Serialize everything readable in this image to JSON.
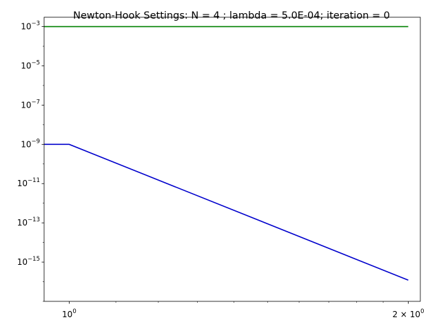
{
  "chart_data": {
    "type": "line",
    "title": "Newton-Hook Settings: N = 4 ; lambda = 5.0E-04; iteration = 0",
    "xlabel": "",
    "ylabel": "",
    "xscale": "log",
    "yscale": "log",
    "xlim": [
      0.95,
      2.05
    ],
    "ylim": [
      1e-17,
      0.003
    ],
    "grid": false,
    "legend": "none",
    "x_ticks": [
      {
        "value": 1,
        "base": "10",
        "exp": "0",
        "prefix": ""
      },
      {
        "value": 2,
        "base": "10",
        "exp": "0",
        "prefix": "2 × "
      }
    ],
    "y_ticks": [
      {
        "value": 0.001,
        "base": "10",
        "exp": "−3"
      },
      {
        "value": 1e-05,
        "base": "10",
        "exp": "−5"
      },
      {
        "value": 1e-07,
        "base": "10",
        "exp": "−7"
      },
      {
        "value": 1e-09,
        "base": "10",
        "exp": "−9"
      },
      {
        "value": 1e-11,
        "base": "10",
        "exp": "−11"
      },
      {
        "value": 1e-13,
        "base": "10",
        "exp": "−13"
      },
      {
        "value": 1e-15,
        "base": "10",
        "exp": "−15"
      }
    ],
    "series": [
      {
        "color": "#008000",
        "x": [
          0.95,
          2.0
        ],
        "y": [
          0.001,
          0.001
        ]
      },
      {
        "color": "#0000cc",
        "x": [
          0.95,
          1.0,
          2.0
        ],
        "y": [
          1e-09,
          1e-09,
          1.2e-16
        ]
      }
    ]
  }
}
